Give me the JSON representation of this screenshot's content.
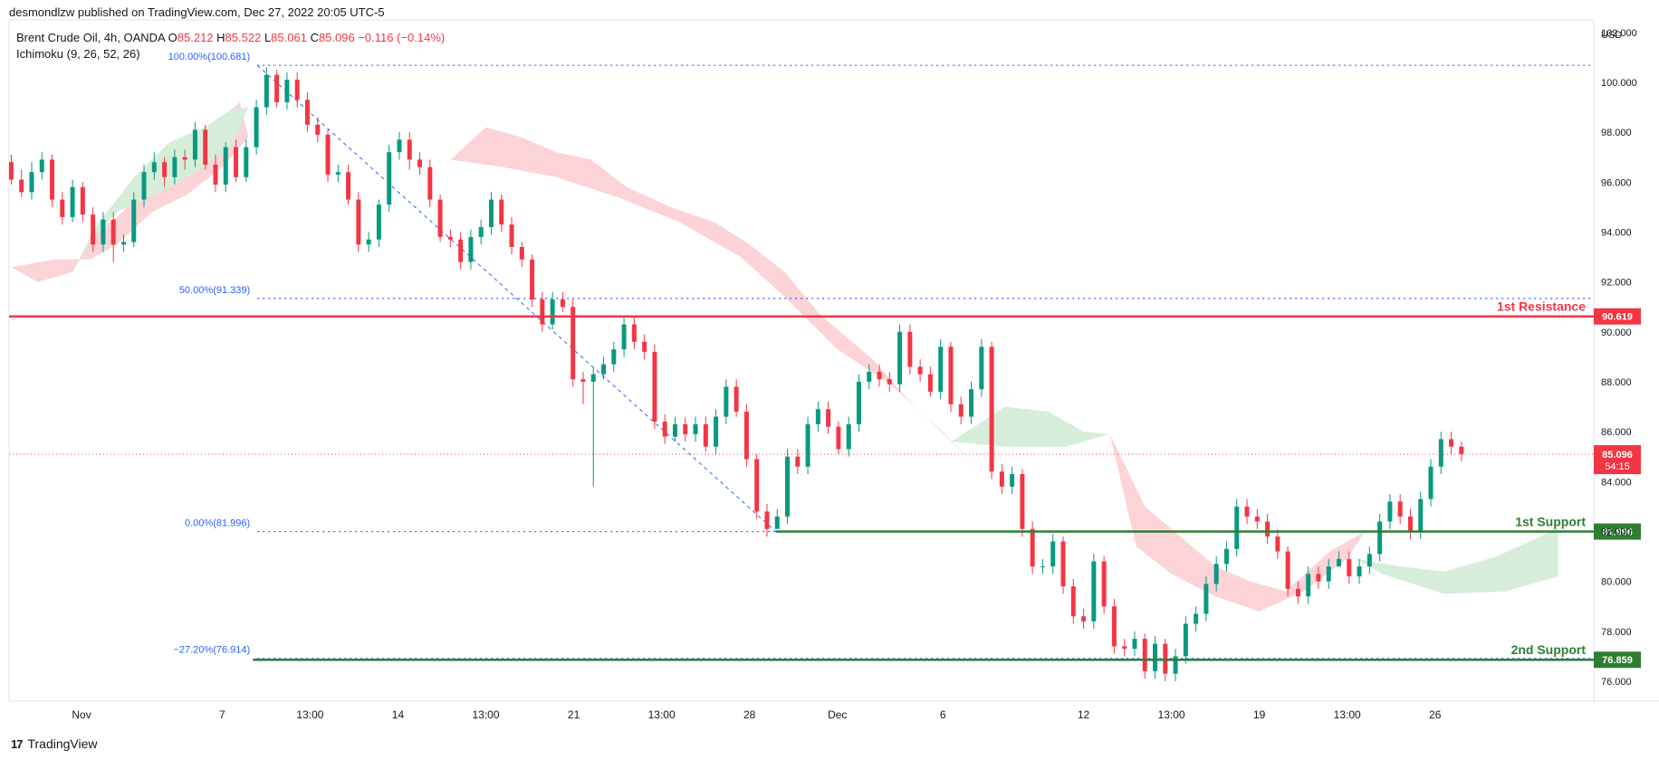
{
  "header": {
    "published": "desmondlzw published on TradingView.com, Dec 27, 2022 20:05 UTC-5",
    "symbol": "Brent Crude Oil, 4h, OANDA",
    "ohlc": {
      "o_label": "O",
      "o": "85.212",
      "h_label": "H",
      "h": "85.522",
      "l_label": "L",
      "l": "85.061",
      "c_label": "C",
      "c": "85.096",
      "change": "−0.116 (−0.14%)"
    },
    "indicator": "Ichimoku (9, 26, 52, 26)"
  },
  "footer": {
    "brand": "TradingView",
    "logo": "17"
  },
  "colors": {
    "up": "#089981",
    "down": "#f23645",
    "cloud_bull": "#d6eed9",
    "cloud_bear": "#fcd3d6",
    "resistance": "#f23645",
    "support": "#2e7d32",
    "fib": "#2962ff"
  },
  "chart_data": {
    "type": "candlestick",
    "currency": "USD",
    "ylim": [
      75.2,
      102.5
    ],
    "y_ticks": [
      "76.000",
      "78.000",
      "80.000",
      "82.000",
      "84.000",
      "86.000",
      "88.000",
      "90.000",
      "92.000",
      "94.000",
      "96.000",
      "98.000",
      "100.000",
      "102.000"
    ],
    "x_ticks": [
      "Nov",
      "7",
      "13:00",
      "14",
      "13:00",
      "21",
      "13:00",
      "28",
      "Dec",
      "6",
      "12",
      "13:00",
      "19",
      "13:00",
      "26"
    ],
    "x_tick_index": [
      16,
      48,
      68,
      88,
      108,
      128,
      148,
      168,
      188,
      212,
      244,
      264,
      284,
      304,
      324
    ],
    "bars": 360,
    "levels": [
      {
        "name": "1st Resistance",
        "value": 90.619,
        "label": "90.619",
        "kind": "resistance"
      },
      {
        "name": "1st Support",
        "value": 81.996,
        "label": "81.996",
        "kind": "support",
        "start_index": 174
      },
      {
        "name": "2nd Support",
        "value": 76.859,
        "label": "76.859",
        "kind": "support",
        "start_index": 55
      }
    ],
    "fibonacci": [
      {
        "label": "100.00%(100.681)",
        "value": 100.681
      },
      {
        "label": "50.00%(91.339)",
        "value": 91.339
      },
      {
        "label": "0.00%(81.996)",
        "value": 81.996
      },
      {
        "label": "−27.20%(76.914)",
        "value": 76.914
      }
    ],
    "fib_start_index": 56,
    "last_price": {
      "value": 85.096,
      "label": "85.096",
      "countdown": "54:15"
    },
    "candles": [
      [
        96.8,
        96.1,
        97.1,
        95.9
      ],
      [
        96.1,
        95.6,
        96.5,
        95.4
      ],
      [
        95.6,
        96.4,
        96.8,
        95.3
      ],
      [
        96.4,
        96.9,
        97.2,
        96.1
      ],
      [
        96.9,
        95.3,
        97.1,
        95.0
      ],
      [
        95.3,
        94.6,
        95.6,
        94.3
      ],
      [
        94.6,
        95.8,
        96.1,
        94.4
      ],
      [
        95.8,
        94.7,
        96.0,
        94.4
      ],
      [
        94.7,
        93.5,
        95.0,
        93.2
      ],
      [
        93.5,
        94.5,
        94.8,
        93.2
      ],
      [
        94.5,
        93.5,
        94.8,
        92.8
      ],
      [
        93.5,
        93.6,
        93.9,
        93.2
      ],
      [
        93.6,
        95.3,
        95.6,
        93.4
      ],
      [
        95.3,
        96.4,
        96.7,
        95.0
      ],
      [
        96.4,
        96.8,
        97.2,
        96.1
      ],
      [
        96.8,
        96.2,
        97.0,
        95.8
      ],
      [
        96.2,
        97.0,
        97.3,
        95.9
      ],
      [
        97.0,
        96.9,
        97.3,
        96.5
      ],
      [
        96.9,
        98.1,
        98.4,
        96.6
      ],
      [
        98.1,
        96.7,
        98.3,
        96.5
      ],
      [
        96.7,
        95.9,
        97.1,
        95.6
      ],
      [
        95.9,
        97.4,
        97.6,
        95.6
      ],
      [
        97.4,
        96.2,
        97.7,
        96.0
      ],
      [
        96.2,
        97.4,
        97.7,
        96.0
      ],
      [
        97.4,
        99.0,
        99.3,
        97.1
      ],
      [
        99.0,
        100.3,
        100.6,
        98.7
      ],
      [
        100.3,
        99.2,
        100.5,
        99.0
      ],
      [
        99.2,
        100.1,
        100.4,
        98.9
      ],
      [
        100.1,
        99.3,
        100.4,
        99.0
      ],
      [
        99.3,
        98.3,
        99.6,
        98.0
      ],
      [
        98.3,
        97.9,
        98.6,
        97.6
      ],
      [
        97.9,
        96.3,
        98.1,
        96.0
      ],
      [
        96.3,
        96.4,
        96.7,
        96.0
      ],
      [
        96.4,
        95.3,
        96.7,
        95.1
      ],
      [
        95.3,
        93.5,
        95.6,
        93.2
      ],
      [
        93.5,
        93.7,
        94.0,
        93.2
      ],
      [
        93.7,
        95.1,
        95.3,
        93.4
      ],
      [
        95.1,
        97.2,
        97.5,
        94.8
      ],
      [
        97.2,
        97.7,
        98.0,
        96.9
      ],
      [
        97.7,
        96.9,
        98.0,
        96.5
      ],
      [
        96.9,
        96.6,
        97.2,
        96.3
      ],
      [
        96.6,
        95.3,
        96.9,
        95.0
      ],
      [
        95.3,
        93.8,
        95.5,
        93.6
      ],
      [
        93.8,
        93.7,
        94.1,
        93.4
      ],
      [
        93.7,
        92.8,
        94.0,
        92.5
      ],
      [
        92.8,
        93.8,
        94.1,
        92.5
      ],
      [
        93.8,
        94.2,
        94.5,
        93.5
      ],
      [
        94.2,
        95.3,
        95.6,
        93.9
      ],
      [
        95.3,
        94.3,
        95.5,
        94.0
      ],
      [
        94.3,
        93.4,
        94.6,
        93.1
      ],
      [
        93.4,
        92.9,
        93.6,
        92.6
      ],
      [
        92.9,
        91.3,
        93.1,
        91.0
      ],
      [
        91.3,
        90.3,
        91.6,
        90.0
      ],
      [
        90.3,
        91.3,
        91.6,
        90.1
      ],
      [
        91.3,
        91.0,
        91.6,
        90.8
      ],
      [
        91.0,
        88.1,
        91.3,
        87.8
      ],
      [
        88.1,
        88.0,
        88.4,
        87.1
      ],
      [
        88.0,
        88.3,
        88.6,
        83.8
      ],
      [
        88.3,
        88.7,
        89.0,
        88.1
      ],
      [
        88.7,
        89.3,
        89.6,
        88.4
      ],
      [
        89.3,
        90.3,
        90.6,
        89.0
      ],
      [
        90.3,
        89.6,
        90.6,
        89.3
      ],
      [
        89.6,
        89.2,
        89.9,
        88.9
      ],
      [
        89.2,
        86.4,
        89.5,
        86.1
      ],
      [
        86.4,
        85.8,
        86.7,
        85.5
      ],
      [
        85.8,
        86.3,
        86.6,
        85.6
      ],
      [
        86.3,
        85.9,
        86.6,
        85.6
      ],
      [
        85.9,
        86.3,
        86.6,
        85.6
      ],
      [
        86.3,
        85.4,
        86.6,
        85.2
      ],
      [
        85.4,
        86.6,
        86.9,
        85.1
      ],
      [
        86.6,
        87.8,
        88.1,
        86.3
      ],
      [
        87.8,
        86.8,
        88.1,
        86.6
      ],
      [
        86.8,
        84.9,
        87.1,
        84.6
      ],
      [
        84.9,
        82.8,
        85.1,
        82.5
      ],
      [
        82.8,
        82.1,
        83.1,
        81.8
      ],
      [
        82.1,
        82.6,
        82.9,
        82.3
      ],
      [
        82.6,
        85.0,
        85.3,
        82.3
      ],
      [
        85.0,
        84.6,
        85.3,
        84.3
      ],
      [
        84.6,
        86.3,
        86.6,
        84.3
      ],
      [
        86.3,
        86.9,
        87.2,
        86.0
      ],
      [
        86.9,
        86.2,
        87.2,
        85.9
      ],
      [
        86.2,
        85.3,
        86.4,
        85.1
      ],
      [
        85.3,
        86.3,
        86.6,
        85.0
      ],
      [
        86.3,
        88.0,
        88.3,
        86.0
      ],
      [
        88.0,
        88.4,
        88.7,
        87.7
      ],
      [
        88.4,
        88.1,
        88.7,
        87.8
      ],
      [
        88.1,
        87.9,
        88.4,
        87.6
      ],
      [
        87.9,
        90.0,
        90.3,
        87.6
      ],
      [
        90.0,
        88.6,
        90.3,
        88.3
      ],
      [
        88.6,
        88.3,
        88.9,
        88.0
      ],
      [
        88.3,
        87.6,
        88.6,
        87.4
      ],
      [
        87.6,
        89.4,
        89.7,
        87.3
      ],
      [
        89.4,
        87.1,
        89.6,
        86.8
      ],
      [
        87.1,
        86.6,
        87.4,
        86.3
      ],
      [
        86.6,
        87.7,
        88.0,
        86.3
      ],
      [
        87.7,
        89.4,
        89.7,
        87.4
      ],
      [
        89.4,
        84.4,
        89.6,
        84.1
      ],
      [
        84.4,
        83.8,
        84.7,
        83.5
      ],
      [
        83.8,
        84.3,
        84.6,
        83.5
      ],
      [
        84.3,
        82.1,
        84.5,
        81.8
      ],
      [
        82.1,
        80.6,
        82.4,
        80.3
      ],
      [
        80.6,
        80.6,
        80.9,
        80.3
      ],
      [
        80.6,
        81.6,
        81.9,
        80.3
      ],
      [
        81.6,
        79.8,
        81.8,
        79.5
      ],
      [
        79.8,
        78.6,
        80.1,
        78.3
      ],
      [
        78.6,
        78.4,
        78.9,
        78.1
      ],
      [
        78.4,
        80.8,
        81.1,
        78.1
      ],
      [
        80.8,
        79.0,
        81.0,
        78.7
      ],
      [
        79.0,
        77.4,
        79.3,
        77.1
      ],
      [
        77.4,
        77.3,
        77.7,
        77.0
      ],
      [
        77.3,
        77.7,
        78.0,
        77.0
      ],
      [
        77.7,
        76.4,
        77.9,
        76.1
      ],
      [
        76.4,
        77.5,
        77.8,
        76.1
      ],
      [
        77.5,
        76.3,
        77.7,
        76.0
      ],
      [
        76.3,
        77.0,
        77.3,
        76.0
      ],
      [
        77.0,
        78.3,
        78.6,
        76.7
      ],
      [
        78.3,
        78.7,
        79.0,
        78.0
      ],
      [
        78.7,
        79.9,
        80.2,
        78.4
      ],
      [
        79.9,
        80.7,
        81.0,
        79.6
      ],
      [
        80.7,
        81.3,
        81.6,
        80.4
      ],
      [
        81.3,
        83.0,
        83.3,
        81.0
      ],
      [
        83.0,
        82.6,
        83.3,
        82.3
      ],
      [
        82.6,
        82.4,
        82.9,
        82.1
      ],
      [
        82.4,
        81.8,
        82.7,
        81.5
      ],
      [
        81.8,
        81.2,
        82.1,
        80.9
      ],
      [
        81.2,
        79.7,
        81.4,
        79.4
      ],
      [
        79.7,
        79.4,
        80.0,
        79.1
      ],
      [
        79.4,
        80.3,
        80.6,
        79.1
      ],
      [
        80.3,
        80.0,
        80.6,
        79.7
      ],
      [
        80.0,
        80.6,
        80.9,
        79.7
      ],
      [
        80.6,
        80.9,
        81.2,
        80.6
      ],
      [
        80.9,
        80.2,
        81.2,
        79.9
      ],
      [
        80.2,
        80.6,
        80.9,
        79.9
      ],
      [
        80.6,
        81.1,
        81.4,
        80.3
      ],
      [
        81.1,
        82.4,
        82.7,
        80.8
      ],
      [
        82.4,
        83.2,
        83.5,
        82.1
      ],
      [
        83.2,
        82.6,
        83.5,
        82.3
      ],
      [
        82.6,
        82.0,
        82.9,
        81.7
      ],
      [
        82.0,
        83.3,
        83.6,
        81.7
      ],
      [
        83.3,
        84.6,
        84.9,
        83.0
      ],
      [
        84.6,
        85.7,
        86.0,
        84.3
      ],
      [
        85.7,
        85.4,
        86.0,
        85.1
      ],
      [
        85.4,
        85.1,
        85.6,
        84.8
      ]
    ]
  }
}
